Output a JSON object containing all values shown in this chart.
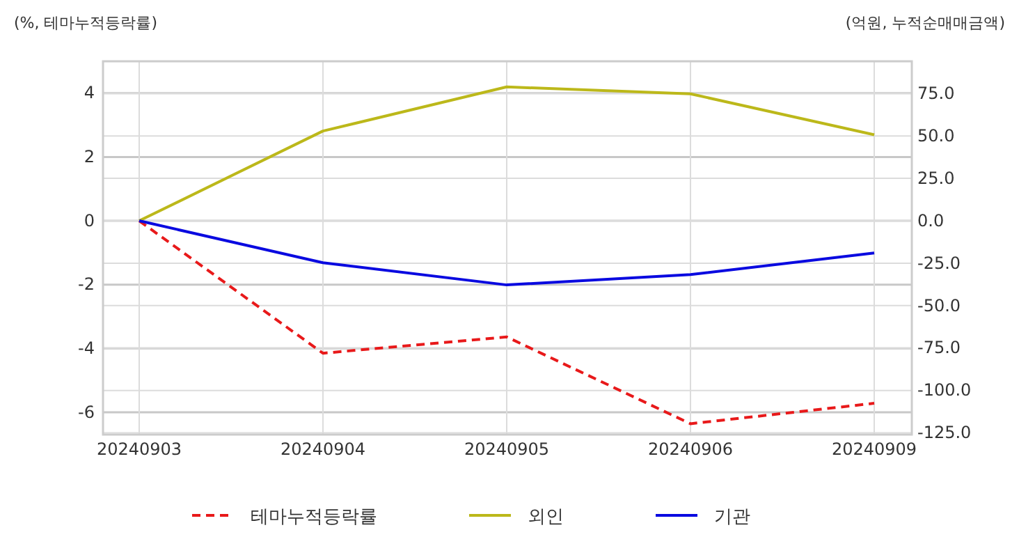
{
  "chart_data": {
    "type": "line",
    "categories": [
      "20240903",
      "20240904",
      "20240905",
      "20240906",
      "20240909"
    ],
    "ylabel": "(%, 테마누적등락률)",
    "y2label": "(억원, 누적순매매금액)",
    "ylim": [
      -6.7,
      5
    ],
    "yticks": [
      -6,
      -4,
      -2,
      0,
      2,
      4
    ],
    "y2lim": [
      -126,
      94
    ],
    "y2ticks": [
      {
        "value": -125,
        "label": "-125.0"
      },
      {
        "value": -100,
        "label": "-100.0"
      },
      {
        "value": -75,
        "label": "-75.0"
      },
      {
        "value": -50,
        "label": "-50.0"
      },
      {
        "value": -25,
        "label": "-25.0"
      },
      {
        "value": 0,
        "label": "0.0"
      },
      {
        "value": 25,
        "label": "25.0"
      },
      {
        "value": 50,
        "label": "50.0"
      },
      {
        "value": 75,
        "label": "75.0"
      }
    ],
    "grid": true,
    "legend": "bottom",
    "series": [
      {
        "name": "테마누적등락률",
        "color": "#e8191a",
        "line_style": "dashed",
        "values": [
          0,
          -4.15,
          -3.64,
          -6.36,
          -5.72
        ]
      },
      {
        "name": "외인",
        "color": "#bcb81a",
        "axis": "y2",
        "line_style": "solid",
        "values": [
          0,
          52.9,
          78.9,
          74.8,
          50.7
        ]
      },
      {
        "name": "기관",
        "color": "#0a0ae0",
        "axis": "y2",
        "line_style": "solid",
        "values": [
          0,
          -24.7,
          -37.8,
          -31.7,
          -19
        ]
      }
    ]
  }
}
